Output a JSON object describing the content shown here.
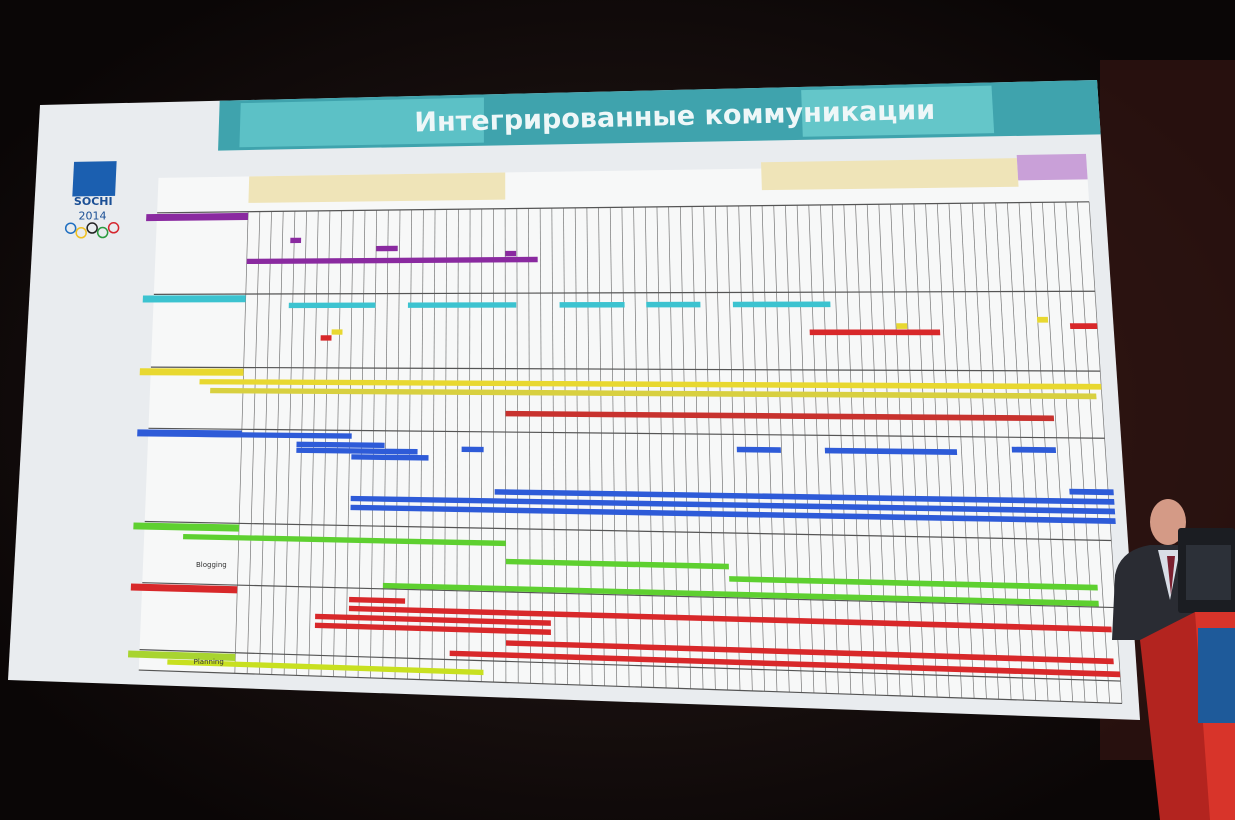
{
  "header": {
    "title": "Интегрированные коммуникации"
  },
  "logo": {
    "line1": "SOCHI",
    "line2": "2014"
  },
  "rows": {
    "blogging": "Blogging",
    "planning": "Planning"
  }
}
